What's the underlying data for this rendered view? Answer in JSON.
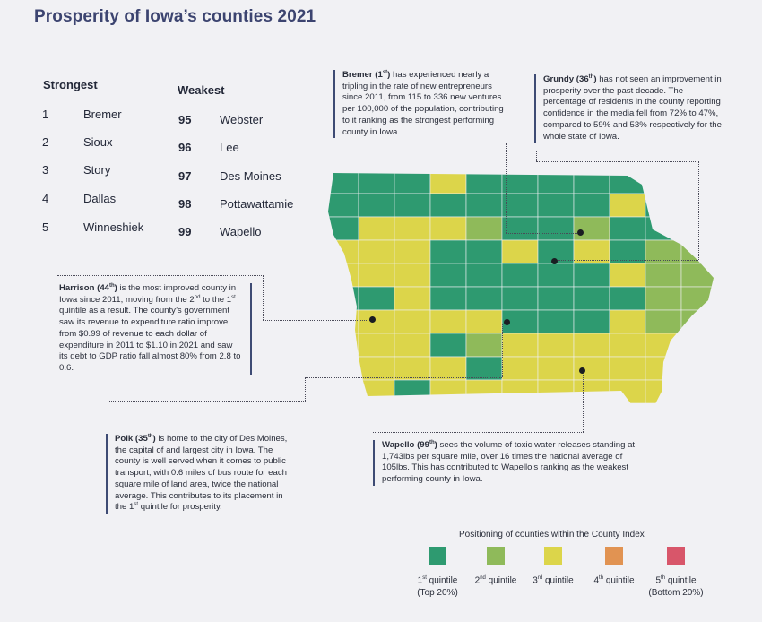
{
  "page": {
    "title": "Prosperity of Iowa’s counties 2021"
  },
  "strongest": {
    "heading": "Strongest",
    "rows": [
      {
        "rank": "1",
        "county": "Bremer"
      },
      {
        "rank": "2",
        "county": "Sioux"
      },
      {
        "rank": "3",
        "county": "Story"
      },
      {
        "rank": "4",
        "county": "Dallas"
      },
      {
        "rank": "5",
        "county": "Winneshiek"
      }
    ]
  },
  "weakest": {
    "heading": "Weakest",
    "rows": [
      {
        "rank": "95",
        "county": "Webster"
      },
      {
        "rank": "96",
        "county": "Lee"
      },
      {
        "rank": "97",
        "county": "Des Moines"
      },
      {
        "rank": "98",
        "county": "Pottawattamie"
      },
      {
        "rank": "99",
        "county": "Wapello"
      }
    ]
  },
  "notes": {
    "bremer": {
      "name": "Bremer",
      "rank_sup": "st",
      "rank": "1",
      "text": "has experienced nearly a tripling in the rate of new entrepreneurs since 2011, from 115 to 336 new ventures per 100,000 of the population, contributing to it ranking as the strongest performing county in Iowa."
    },
    "grundy": {
      "name": "Grundy",
      "rank_sup": "th",
      "rank": "36",
      "text": "has not seen an improvement in prosperity over the past decade. The percentage of residents in the county reporting confidence in the media fell from 72% to 47%, compared to 59% and 53% respectively for the whole state of Iowa."
    },
    "harrison": {
      "name": "Harrison",
      "rank_sup": "th",
      "rank": "44",
      "text_a": "is the most improved county in Iowa since 2011, moving from the 2",
      "sup_a": "nd",
      "text_b": "to the 1",
      "sup_b": "st",
      "text_c": "quintile as a result. The county’s government saw its revenue to expenditure ratio improve from $0.99 of revenue to each dollar of expenditure in 2011 to $1.10 in 2021 and saw its debt to GDP ratio fall almost 80% from 2.8 to 0.6."
    },
    "polk": {
      "name": "Polk",
      "rank_sup": "th",
      "rank": "35",
      "text_a": "is home to the city of Des Moines, the capital of and largest city in Iowa. The county is well served when it comes to public transport, with 0.6 miles of bus route for each square mile of land area, twice the national average. This contributes to its placement in the 1",
      "sup_a": "st",
      "text_b": "quintile for prosperity."
    },
    "wapello": {
      "name": "Wapello",
      "rank_sup": "th",
      "rank": "99",
      "text": "sees the volume of toxic water releases standing at 1,743lbs per square mile, over 16 times the national average of 105lbs. This has contributed to Wapello’s ranking as the weakest performing county in Iowa."
    }
  },
  "legend": {
    "title": "Positioning of counties within the County Index",
    "items": [
      {
        "num": "1",
        "sup": "st",
        "label": "quintile",
        "sub": "(Top 20%)",
        "color": "#2e9a70"
      },
      {
        "num": "2",
        "sup": "nd",
        "label": "quintile",
        "sub": "",
        "color": "#8fba5a"
      },
      {
        "num": "3",
        "sup": "rd",
        "label": "quintile",
        "sub": "",
        "color": "#dcd54a"
      },
      {
        "num": "4",
        "sup": "th",
        "label": "quintile",
        "sub": "",
        "color": "#e19352"
      },
      {
        "num": "5",
        "sup": "th",
        "label": "quintile",
        "sub": "(Bottom 20%)",
        "color": "#d8566a"
      }
    ]
  },
  "map": {
    "colors": {
      "q1": "#2e9a70",
      "q2": "#8fba5a",
      "q3": "#dcd54a",
      "border": "#f1f1f4"
    },
    "grid": [
      "11131111111",
      "11111111311",
      "13332112112",
      "33311313122",
      "33311111322",
      "11311111122",
      "33333111322",
      "33312333333",
      "33331333333",
      "33133333333"
    ]
  }
}
